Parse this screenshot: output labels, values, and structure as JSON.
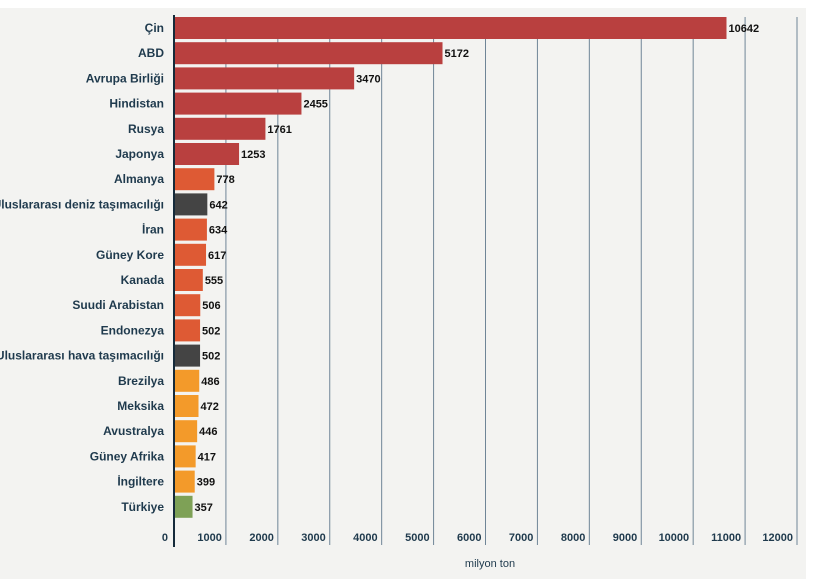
{
  "chart_data": {
    "type": "bar",
    "orientation": "horizontal",
    "categories": [
      "Çin",
      "ABD",
      "Avrupa Birliği",
      "Hindistan",
      "Rusya",
      "Japonya",
      "Almanya",
      "Uluslararası deniz taşımacılığı",
      "İran",
      "Güney Kore",
      "Kanada",
      "Suudi Arabistan",
      "Endonezya",
      "Uluslararası hava taşımacılığı",
      "Brezilya",
      "Meksika",
      "Avustralya",
      "Güney Afrika",
      "İngiltere",
      "Türkiye"
    ],
    "values": [
      10642,
      5172,
      3470,
      2455,
      1761,
      1253,
      778,
      642,
      634,
      617,
      555,
      506,
      502,
      502,
      486,
      472,
      446,
      417,
      399,
      357
    ],
    "colors": [
      "#b9403f",
      "#b9403f",
      "#b9403f",
      "#b9403f",
      "#b9403f",
      "#b9403f",
      "#de5a34",
      "#444444",
      "#de5a34",
      "#de5a34",
      "#de5a34",
      "#de5a34",
      "#de5a34",
      "#444444",
      "#f39a2a",
      "#f39a2a",
      "#f39a2a",
      "#f39a2a",
      "#f39a2a",
      "#7ea156"
    ],
    "xlabel": "milyon ton",
    "xlim": [
      0,
      12000
    ],
    "xticks": [
      0,
      1000,
      2000,
      3000,
      4000,
      5000,
      6000,
      7000,
      8000,
      9000,
      10000,
      11000,
      12000
    ],
    "grid": "vertical",
    "data_labels": true
  }
}
